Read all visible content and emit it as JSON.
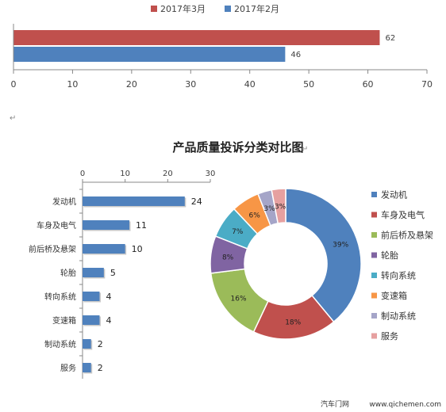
{
  "chart_data": [
    {
      "type": "bar",
      "orientation": "horizontal",
      "series": [
        {
          "name": "2017年3月",
          "color": "#c0504d",
          "values": [
            62
          ]
        },
        {
          "name": "2017年2月",
          "color": "#4f81bd",
          "values": [
            46
          ]
        }
      ],
      "xlim": [
        0,
        70
      ],
      "xticks": [
        "0",
        "10",
        "20",
        "30",
        "40",
        "50",
        "60",
        "70"
      ],
      "legend_position": "top-center",
      "grid": false
    },
    {
      "type": "bar",
      "orientation": "horizontal",
      "categories": [
        "发动机",
        "车身及电气",
        "前后桥及悬架",
        "轮胎",
        "转向系统",
        "变速箱",
        "制动系统",
        "服务"
      ],
      "values": [
        24,
        11,
        10,
        5,
        4,
        4,
        2,
        2
      ],
      "xlim": [
        0,
        30
      ],
      "xticks": [
        "0",
        "10",
        "20",
        "30"
      ],
      "color": "#4f81bd",
      "grid": false
    },
    {
      "type": "pie",
      "donut": true,
      "title": "产品质量投诉分类对比图",
      "categories": [
        "发动机",
        "车身及电气",
        "前后桥及悬架",
        "轮胎",
        "转向系统",
        "变速箱",
        "制动系统",
        "服务"
      ],
      "values": [
        39,
        18,
        16,
        8,
        7,
        6,
        3,
        3
      ],
      "labels": [
        "39%",
        "18%",
        "16%",
        "8%",
        "7%",
        "6%",
        "3%",
        "3%"
      ],
      "colors": [
        "#4f81bd",
        "#c0504d",
        "#9bbb59",
        "#8064a2",
        "#4bacc6",
        "#f79646",
        "#a5a5c8",
        "#e6a0a0"
      ],
      "legend_position": "right"
    }
  ],
  "watermark": {
    "brand": "汽车门网",
    "url": "www.qichemen.com"
  },
  "marks": {
    "return_char": "↵"
  }
}
